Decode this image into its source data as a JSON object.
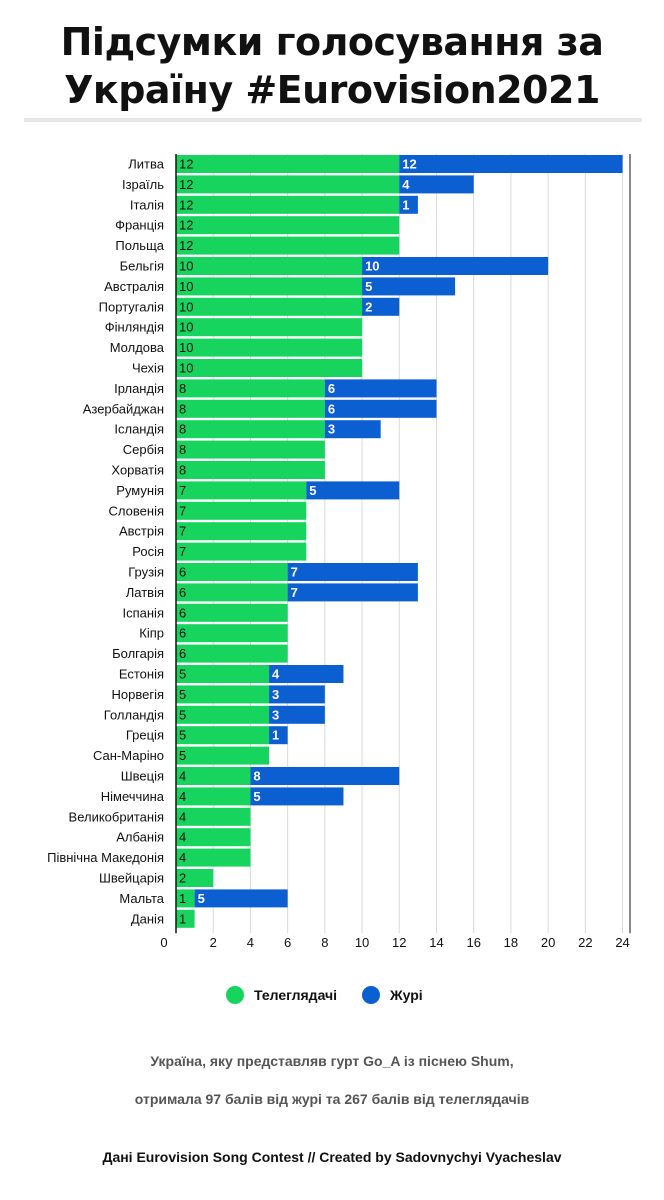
{
  "title": {
    "line1": "Підсумки голосування за",
    "line2": "Україну #Eurovision2021"
  },
  "colors": {
    "televote": "#17d45f",
    "jury": "#0b5fd1",
    "axis": "#111111",
    "grid": "#d9d9d9",
    "jury_label": "#ffffff",
    "televote_label": "#111111"
  },
  "chart_data": {
    "type": "bar",
    "orientation": "horizontal",
    "stacked": true,
    "categories": [
      "Литва",
      "Ізраїль",
      "Італія",
      "Франція",
      "Польща",
      "Бельгія",
      "Австралія",
      "Португалія",
      "Фінляндія",
      "Молдова",
      "Чехія",
      "Ірландія",
      "Азербайджан",
      "Ісландія",
      "Сербія",
      "Хорватія",
      "Румунія",
      "Словенія",
      "Австрія",
      "Росія",
      "Грузія",
      "Латвія",
      "Іспанія",
      "Кіпр",
      "Болгарія",
      "Естонія",
      "Норвегія",
      "Голландія",
      "Греція",
      "Сан-Маріно",
      "Швеція",
      "Німеччина",
      "Великобританія",
      "Албанія",
      "Північна Македонія",
      "Швейцарія",
      "Мальта",
      "Данія"
    ],
    "series": [
      {
        "name": "Телеглядачі",
        "values": [
          12,
          12,
          12,
          12,
          12,
          10,
          10,
          10,
          10,
          10,
          10,
          8,
          8,
          8,
          8,
          8,
          7,
          7,
          7,
          7,
          6,
          6,
          6,
          6,
          6,
          5,
          5,
          5,
          5,
          5,
          4,
          4,
          4,
          4,
          4,
          2,
          1,
          1
        ]
      },
      {
        "name": "Журі",
        "values": [
          12,
          4,
          1,
          0,
          0,
          10,
          5,
          2,
          0,
          0,
          0,
          6,
          6,
          3,
          0,
          0,
          5,
          0,
          0,
          0,
          7,
          7,
          0,
          0,
          0,
          4,
          3,
          3,
          1,
          0,
          8,
          5,
          0,
          0,
          0,
          0,
          5,
          0
        ]
      }
    ],
    "xticks": [
      0,
      2,
      4,
      6,
      8,
      10,
      12,
      14,
      16,
      18,
      20,
      22,
      24
    ],
    "xlim": [
      0,
      24.4
    ],
    "grid": true,
    "legend_position": "bottom",
    "title": "Підсумки голосування за Україну #Eurovision2021"
  },
  "legend": {
    "televote_label": "Телеглядачі",
    "jury_label": "Журі"
  },
  "notes": {
    "line1": "Україна, яку представляв гурт Go_A із піснею Shum,",
    "line2": "отримала 97 балів від журі та 267 балів від телеглядачів"
  },
  "credit": "Дані Eurovision Song Contest // Created by Sadovnychyi Vyacheslav"
}
